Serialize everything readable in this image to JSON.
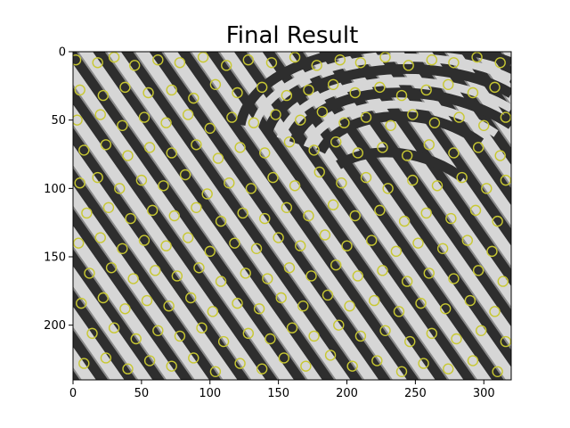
{
  "chart_data": {
    "type": "image",
    "title": "Final Result",
    "xlim": [
      0,
      320
    ],
    "ylim": [
      240,
      0
    ],
    "x_ticks": [
      0,
      50,
      100,
      150,
      200,
      250,
      300
    ],
    "y_ticks": [
      0,
      50,
      100,
      150,
      200
    ],
    "image": "grayscale fingerprint (loop pattern)",
    "marker_style": {
      "shape": "circle",
      "color": "#c8c832",
      "filled": false
    },
    "markers": [
      [
        2,
        6
      ],
      [
        18,
        8
      ],
      [
        30,
        4
      ],
      [
        45,
        10
      ],
      [
        62,
        6
      ],
      [
        78,
        8
      ],
      [
        95,
        4
      ],
      [
        112,
        10
      ],
      [
        128,
        6
      ],
      [
        145,
        8
      ],
      [
        162,
        4
      ],
      [
        178,
        10
      ],
      [
        195,
        6
      ],
      [
        210,
        8
      ],
      [
        228,
        4
      ],
      [
        245,
        10
      ],
      [
        262,
        6
      ],
      [
        278,
        8
      ],
      [
        295,
        4
      ],
      [
        312,
        8
      ],
      [
        5,
        28
      ],
      [
        22,
        32
      ],
      [
        38,
        26
      ],
      [
        55,
        30
      ],
      [
        72,
        28
      ],
      [
        88,
        34
      ],
      [
        104,
        24
      ],
      [
        120,
        30
      ],
      [
        138,
        26
      ],
      [
        156,
        32
      ],
      [
        172,
        28
      ],
      [
        190,
        24
      ],
      [
        206,
        30
      ],
      [
        224,
        26
      ],
      [
        240,
        32
      ],
      [
        258,
        28
      ],
      [
        274,
        24
      ],
      [
        292,
        30
      ],
      [
        308,
        26
      ],
      [
        3,
        50
      ],
      [
        20,
        46
      ],
      [
        36,
        54
      ],
      [
        52,
        48
      ],
      [
        68,
        52
      ],
      [
        84,
        46
      ],
      [
        100,
        56
      ],
      [
        116,
        48
      ],
      [
        132,
        52
      ],
      [
        148,
        46
      ],
      [
        166,
        50
      ],
      [
        182,
        44
      ],
      [
        198,
        52
      ],
      [
        214,
        48
      ],
      [
        232,
        54
      ],
      [
        248,
        46
      ],
      [
        264,
        52
      ],
      [
        282,
        48
      ],
      [
        300,
        54
      ],
      [
        316,
        48
      ],
      [
        8,
        72
      ],
      [
        24,
        68
      ],
      [
        40,
        76
      ],
      [
        56,
        70
      ],
      [
        72,
        74
      ],
      [
        90,
        68
      ],
      [
        106,
        78
      ],
      [
        122,
        70
      ],
      [
        140,
        74
      ],
      [
        158,
        66
      ],
      [
        176,
        72
      ],
      [
        192,
        66
      ],
      [
        208,
        74
      ],
      [
        226,
        70
      ],
      [
        244,
        76
      ],
      [
        260,
        68
      ],
      [
        278,
        74
      ],
      [
        296,
        70
      ],
      [
        312,
        76
      ],
      [
        5,
        96
      ],
      [
        18,
        92
      ],
      [
        34,
        100
      ],
      [
        50,
        94
      ],
      [
        66,
        98
      ],
      [
        82,
        90
      ],
      [
        98,
        104
      ],
      [
        114,
        96
      ],
      [
        130,
        100
      ],
      [
        146,
        92
      ],
      [
        162,
        98
      ],
      [
        180,
        88
      ],
      [
        196,
        96
      ],
      [
        214,
        92
      ],
      [
        230,
        100
      ],
      [
        248,
        94
      ],
      [
        266,
        98
      ],
      [
        284,
        92
      ],
      [
        302,
        100
      ],
      [
        316,
        94
      ],
      [
        10,
        118
      ],
      [
        26,
        114
      ],
      [
        42,
        122
      ],
      [
        58,
        116
      ],
      [
        74,
        120
      ],
      [
        90,
        114
      ],
      [
        108,
        124
      ],
      [
        124,
        118
      ],
      [
        140,
        122
      ],
      [
        156,
        114
      ],
      [
        172,
        120
      ],
      [
        190,
        112
      ],
      [
        206,
        120
      ],
      [
        224,
        116
      ],
      [
        242,
        124
      ],
      [
        258,
        118
      ],
      [
        276,
        122
      ],
      [
        294,
        116
      ],
      [
        310,
        124
      ],
      [
        4,
        140
      ],
      [
        20,
        136
      ],
      [
        36,
        144
      ],
      [
        52,
        138
      ],
      [
        68,
        142
      ],
      [
        84,
        136
      ],
      [
        100,
        146
      ],
      [
        118,
        140
      ],
      [
        134,
        144
      ],
      [
        150,
        136
      ],
      [
        166,
        142
      ],
      [
        184,
        134
      ],
      [
        200,
        142
      ],
      [
        218,
        138
      ],
      [
        236,
        146
      ],
      [
        252,
        140
      ],
      [
        270,
        144
      ],
      [
        288,
        138
      ],
      [
        306,
        146
      ],
      [
        12,
        162
      ],
      [
        28,
        158
      ],
      [
        44,
        166
      ],
      [
        60,
        160
      ],
      [
        76,
        164
      ],
      [
        92,
        158
      ],
      [
        108,
        168
      ],
      [
        126,
        162
      ],
      [
        142,
        166
      ],
      [
        158,
        158
      ],
      [
        174,
        164
      ],
      [
        192,
        156
      ],
      [
        208,
        164
      ],
      [
        226,
        160
      ],
      [
        244,
        168
      ],
      [
        260,
        162
      ],
      [
        278,
        166
      ],
      [
        296,
        160
      ],
      [
        314,
        168
      ],
      [
        6,
        184
      ],
      [
        22,
        180
      ],
      [
        38,
        188
      ],
      [
        54,
        182
      ],
      [
        70,
        186
      ],
      [
        86,
        180
      ],
      [
        102,
        190
      ],
      [
        120,
        184
      ],
      [
        136,
        188
      ],
      [
        152,
        180
      ],
      [
        168,
        186
      ],
      [
        186,
        178
      ],
      [
        202,
        186
      ],
      [
        220,
        182
      ],
      [
        238,
        190
      ],
      [
        254,
        184
      ],
      [
        272,
        188
      ],
      [
        290,
        182
      ],
      [
        308,
        190
      ],
      [
        14,
        206
      ],
      [
        30,
        202
      ],
      [
        46,
        210
      ],
      [
        62,
        204
      ],
      [
        78,
        208
      ],
      [
        94,
        202
      ],
      [
        110,
        212
      ],
      [
        128,
        206
      ],
      [
        144,
        210
      ],
      [
        160,
        202
      ],
      [
        176,
        208
      ],
      [
        194,
        200
      ],
      [
        210,
        208
      ],
      [
        228,
        204
      ],
      [
        246,
        212
      ],
      [
        262,
        206
      ],
      [
        280,
        210
      ],
      [
        298,
        204
      ],
      [
        316,
        212
      ],
      [
        8,
        228
      ],
      [
        24,
        224
      ],
      [
        40,
        232
      ],
      [
        56,
        226
      ],
      [
        72,
        230
      ],
      [
        88,
        224
      ],
      [
        104,
        234
      ],
      [
        122,
        228
      ],
      [
        138,
        232
      ],
      [
        154,
        224
      ],
      [
        170,
        230
      ],
      [
        188,
        222
      ],
      [
        204,
        230
      ],
      [
        222,
        226
      ],
      [
        240,
        234
      ],
      [
        256,
        228
      ],
      [
        274,
        232
      ],
      [
        292,
        226
      ],
      [
        310,
        234
      ]
    ]
  }
}
